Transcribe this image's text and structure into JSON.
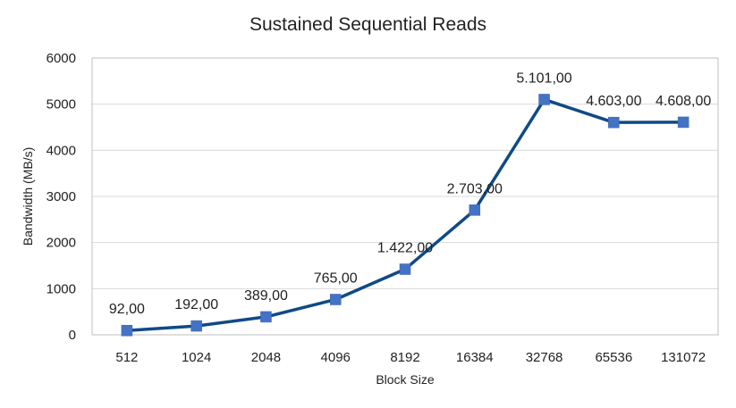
{
  "chart_data": {
    "type": "line",
    "title": "Sustained Sequential Reads",
    "xlabel": "Block Size",
    "ylabel": "Bandwidth (MB/s)",
    "categories": [
      "512",
      "1024",
      "2048",
      "4096",
      "8192",
      "16384",
      "32768",
      "65536",
      "131072"
    ],
    "series": [
      {
        "values": [
          92,
          192,
          389,
          765,
          1422,
          2703,
          5101,
          4603,
          4608
        ],
        "labels": [
          "92,00",
          "192,00",
          "389,00",
          "765,00",
          "1.422,00",
          "2.703,00",
          "5.101,00",
          "4.603,00",
          "4.608,00"
        ]
      }
    ],
    "ylim": [
      0,
      6000
    ],
    "yticks": [
      "0",
      "1000",
      "2000",
      "3000",
      "4000",
      "5000",
      "6000"
    ],
    "grid": true,
    "legend": "none",
    "colors": {
      "line": "#0f4a85",
      "marker": "#4472c4",
      "grid": "#d9d9d9",
      "border": "#bfbfbf"
    }
  }
}
